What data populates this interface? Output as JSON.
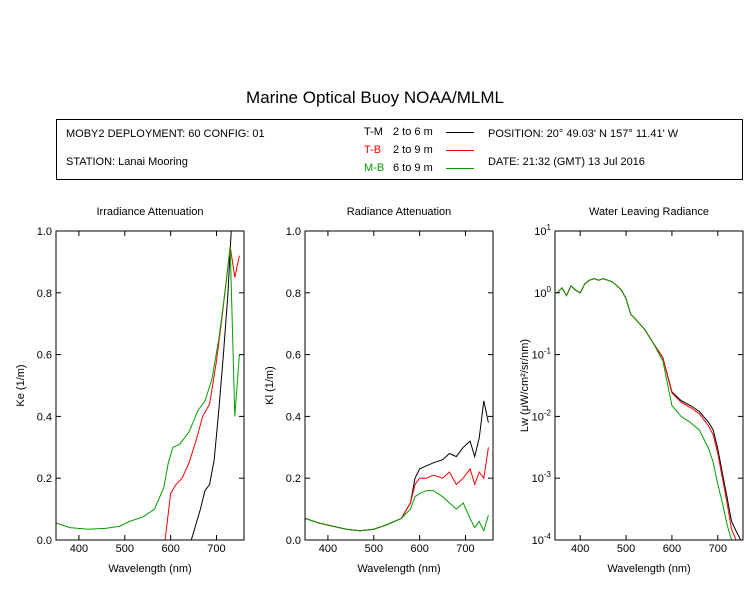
{
  "title": "Marine Optical Buoy NOAA/MLML",
  "info": {
    "deployment": "MOBY2 DEPLOYMENT: 60 CONFIG: 01",
    "station": "STATION: Lanai Mooring",
    "position": "POSITION: 20° 49.03' N   157° 11.41' W",
    "date": "DATE: 21:32 (GMT) 13 Jul 2016",
    "legend": [
      {
        "label": "T-M",
        "range": "2 to 6  m",
        "color": "#000000"
      },
      {
        "label": "T-B",
        "range": "2 to 9  m",
        "color": "#ff0000"
      },
      {
        "label": "M-B",
        "range": "6 to 9  m",
        "color": "#00a000"
      }
    ]
  },
  "chart_data": [
    {
      "type": "line",
      "title": "Irradiance Attenuation",
      "xlabel": "Wavelength (nm)",
      "ylabel": "Ke  (1/m)",
      "xlim": [
        350,
        760
      ],
      "ylim": [
        0,
        1
      ],
      "xticks": [
        "400",
        "500",
        "600",
        "700"
      ],
      "yticks": [
        "0.0",
        "0.2",
        "0.4",
        "0.6",
        "0.8",
        "1.0"
      ],
      "series": [
        {
          "name": "T-M",
          "color": "#000000",
          "x": [
            645,
            655,
            665,
            675,
            685,
            695,
            705,
            715,
            725,
            732
          ],
          "y": [
            0.0,
            0.05,
            0.1,
            0.16,
            0.18,
            0.26,
            0.42,
            0.6,
            0.8,
            1.0
          ]
        },
        {
          "name": "T-B",
          "color": "#ff0000",
          "x": [
            588,
            600,
            612,
            625,
            640,
            655,
            670,
            685,
            700,
            712,
            722,
            730,
            740,
            750
          ],
          "y": [
            0.0,
            0.15,
            0.18,
            0.2,
            0.25,
            0.32,
            0.4,
            0.44,
            0.58,
            0.72,
            0.85,
            0.95,
            0.85,
            0.92
          ]
        },
        {
          "name": "M-B",
          "color": "#00a000",
          "x": [
            350,
            380,
            420,
            460,
            490,
            510,
            540,
            565,
            585,
            595,
            605,
            620,
            640,
            660,
            675,
            690,
            705,
            720,
            730,
            740,
            750
          ],
          "y": [
            0.055,
            0.04,
            0.035,
            0.038,
            0.045,
            0.06,
            0.075,
            0.1,
            0.17,
            0.25,
            0.3,
            0.31,
            0.35,
            0.42,
            0.45,
            0.52,
            0.65,
            0.82,
            0.95,
            0.4,
            0.6
          ]
        }
      ]
    },
    {
      "type": "line",
      "title": "Radiance Attenuation",
      "xlabel": "Wavelength (nm)",
      "ylabel": "Kl  (1/m)",
      "xlim": [
        350,
        760
      ],
      "ylim": [
        0,
        1
      ],
      "xticks": [
        "400",
        "500",
        "600",
        "700"
      ],
      "yticks": [
        "0.0",
        "0.2",
        "0.4",
        "0.6",
        "0.8",
        "1.0"
      ],
      "series": [
        {
          "name": "T-M",
          "color": "#000000",
          "x": [
            350,
            380,
            410,
            440,
            470,
            500,
            530,
            560,
            580,
            590,
            600,
            615,
            630,
            650,
            665,
            680,
            695,
            710,
            720,
            730,
            740,
            750
          ],
          "y": [
            0.07,
            0.055,
            0.045,
            0.035,
            0.03,
            0.035,
            0.05,
            0.07,
            0.12,
            0.2,
            0.23,
            0.24,
            0.25,
            0.26,
            0.28,
            0.27,
            0.3,
            0.32,
            0.27,
            0.33,
            0.45,
            0.38
          ]
        },
        {
          "name": "T-B",
          "color": "#ff0000",
          "x": [
            350,
            380,
            410,
            440,
            470,
            500,
            530,
            560,
            580,
            590,
            600,
            615,
            630,
            650,
            665,
            680,
            695,
            710,
            720,
            730,
            740,
            750
          ],
          "y": [
            0.07,
            0.055,
            0.045,
            0.035,
            0.03,
            0.035,
            0.05,
            0.07,
            0.12,
            0.18,
            0.2,
            0.2,
            0.21,
            0.2,
            0.22,
            0.18,
            0.2,
            0.23,
            0.18,
            0.22,
            0.2,
            0.3
          ]
        },
        {
          "name": "M-B",
          "color": "#00a000",
          "x": [
            350,
            380,
            410,
            440,
            470,
            500,
            530,
            560,
            580,
            590,
            600,
            615,
            630,
            650,
            665,
            680,
            695,
            710,
            720,
            730,
            740,
            750
          ],
          "y": [
            0.07,
            0.055,
            0.045,
            0.035,
            0.03,
            0.035,
            0.05,
            0.07,
            0.1,
            0.14,
            0.15,
            0.16,
            0.16,
            0.14,
            0.12,
            0.1,
            0.12,
            0.07,
            0.04,
            0.06,
            0.03,
            0.08
          ]
        }
      ]
    },
    {
      "type": "line",
      "title": "Water Leaving Radiance",
      "xlabel": "Wavelength (nm)",
      "ylabel": "Lw  (μW/cm²/sr/nm)",
      "yscale": "log",
      "xlim": [
        345,
        755
      ],
      "ylim": [
        0.0001,
        10
      ],
      "xticks": [
        "400",
        "500",
        "600",
        "700"
      ],
      "yticks": [
        "10^-4",
        "10^-3",
        "10^-2",
        "10^-1",
        "10^0",
        "10^1"
      ],
      "series": [
        {
          "name": "T-M",
          "color": "#000000",
          "x": [
            350,
            360,
            370,
            380,
            390,
            400,
            410,
            420,
            430,
            440,
            450,
            460,
            470,
            480,
            490,
            500,
            510,
            520,
            540,
            560,
            580,
            600,
            620,
            640,
            660,
            680,
            690,
            700,
            710,
            720,
            730,
            740,
            750
          ],
          "y": [
            1.0,
            1.2,
            0.9,
            1.3,
            1.1,
            1.0,
            1.4,
            1.6,
            1.7,
            1.6,
            1.7,
            1.6,
            1.5,
            1.3,
            1.1,
            0.8,
            0.45,
            0.38,
            0.26,
            0.15,
            0.09,
            0.025,
            0.018,
            0.015,
            0.012,
            0.008,
            0.006,
            0.003,
            0.0012,
            0.0005,
            0.0002,
            0.00014,
            0.0001
          ]
        },
        {
          "name": "T-B",
          "color": "#ff0000",
          "x": [
            350,
            360,
            370,
            380,
            390,
            400,
            410,
            420,
            430,
            440,
            450,
            460,
            470,
            480,
            490,
            500,
            510,
            520,
            540,
            560,
            580,
            600,
            620,
            640,
            660,
            680,
            690,
            700,
            710,
            720,
            730,
            740
          ],
          "y": [
            1.0,
            1.2,
            0.9,
            1.3,
            1.1,
            1.0,
            1.4,
            1.6,
            1.7,
            1.6,
            1.7,
            1.6,
            1.5,
            1.3,
            1.1,
            0.8,
            0.45,
            0.38,
            0.26,
            0.15,
            0.09,
            0.024,
            0.017,
            0.014,
            0.011,
            0.007,
            0.005,
            0.0025,
            0.001,
            0.0004,
            0.00015,
            0.0001
          ]
        },
        {
          "name": "M-B",
          "color": "#00a000",
          "x": [
            350,
            360,
            370,
            380,
            390,
            400,
            410,
            420,
            430,
            440,
            450,
            460,
            470,
            480,
            490,
            500,
            510,
            520,
            540,
            560,
            580,
            600,
            620,
            640,
            660,
            680,
            690,
            700,
            710,
            720,
            730
          ],
          "y": [
            1.0,
            1.2,
            0.9,
            1.3,
            1.1,
            1.0,
            1.4,
            1.6,
            1.7,
            1.6,
            1.7,
            1.6,
            1.5,
            1.3,
            1.1,
            0.8,
            0.45,
            0.38,
            0.26,
            0.15,
            0.08,
            0.015,
            0.01,
            0.008,
            0.006,
            0.003,
            0.0018,
            0.0008,
            0.0004,
            0.00018,
            0.0001
          ]
        }
      ]
    }
  ]
}
